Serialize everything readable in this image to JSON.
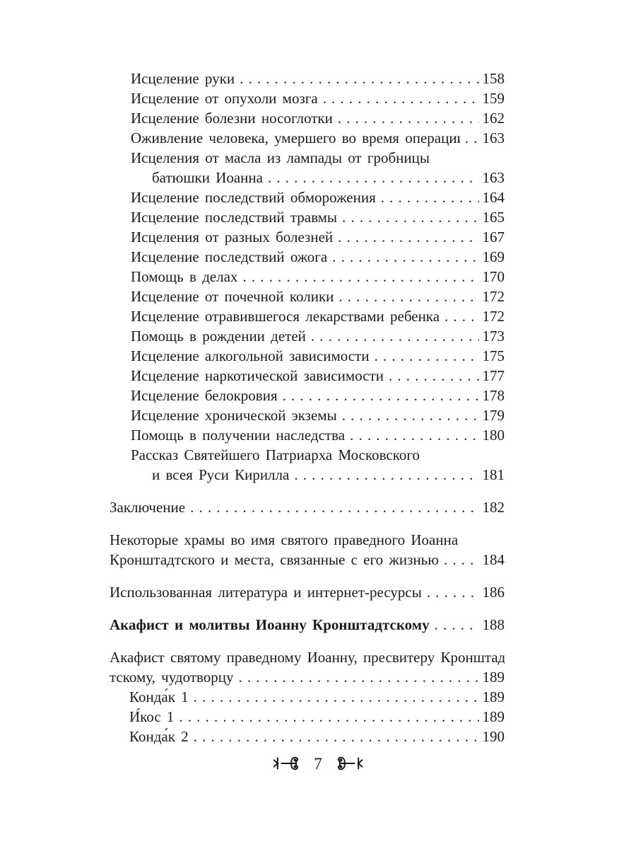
{
  "toc": {
    "entries": [
      {
        "lines": [
          "Исцеление руки"
        ],
        "page": "158",
        "indent": 1
      },
      {
        "lines": [
          "Исцеление от опухоли мозга"
        ],
        "page": "159",
        "indent": 1
      },
      {
        "lines": [
          "Исцеление болезни носоглотки"
        ],
        "page": "162",
        "indent": 1
      },
      {
        "lines": [
          "Оживление человека, умершего во время операции"
        ],
        "page": "163",
        "indent": 1
      },
      {
        "lines": [
          "Исцеления от масла из лампады от гробницы",
          "батюшки Иоанна"
        ],
        "page": "163",
        "indent": 1,
        "wrap_indent": true
      },
      {
        "lines": [
          "Исцеление последствий обморожения"
        ],
        "page": "164",
        "indent": 1
      },
      {
        "lines": [
          "Исцеление последствий травмы"
        ],
        "page": "165",
        "indent": 1
      },
      {
        "lines": [
          "Исцеления от разных болезней"
        ],
        "page": "167",
        "indent": 1
      },
      {
        "lines": [
          "Исцеление последствий ожога"
        ],
        "page": "169",
        "indent": 1
      },
      {
        "lines": [
          "Помощь в делах"
        ],
        "page": "170",
        "indent": 1
      },
      {
        "lines": [
          "Исцеление от почечной колики"
        ],
        "page": "172",
        "indent": 1
      },
      {
        "lines": [
          "Исцеление отравившегося лекарствами ребенка"
        ],
        "page": "172",
        "indent": 1
      },
      {
        "lines": [
          "Помощь в рождении детей"
        ],
        "page": "173",
        "indent": 1
      },
      {
        "lines": [
          "Исцеление алкогольной зависимости"
        ],
        "page": "175",
        "indent": 1
      },
      {
        "lines": [
          "Исцеление наркотической зависимости"
        ],
        "page": "177",
        "indent": 1
      },
      {
        "lines": [
          "Исцеление белокровия"
        ],
        "page": "178",
        "indent": 1
      },
      {
        "lines": [
          "Исцеление хронической экземы"
        ],
        "page": "179",
        "indent": 1
      },
      {
        "lines": [
          "Помощь в получении наследства"
        ],
        "page": "180",
        "indent": 1
      },
      {
        "lines": [
          "Рассказ Святейшего Патриарха Московского",
          "и всея Руси Кирилла"
        ],
        "page": "181",
        "indent": 1,
        "wrap_indent": true
      },
      {
        "lines": [
          "Заключение"
        ],
        "page": "182",
        "indent": 0,
        "gap_before": true
      },
      {
        "lines": [
          "Некоторые храмы во имя святого праведного Иоанна",
          "Кронштадтского и места, связанные с его жизнью"
        ],
        "page": "184",
        "indent": 0,
        "gap_before": true
      },
      {
        "lines": [
          "Использованная литература и интернет-ресурсы"
        ],
        "page": "186",
        "indent": 0,
        "gap_before": true
      },
      {
        "lines": [
          "Акафист и молитвы Иоанну Кронштадтскому"
        ],
        "page": "188",
        "indent": 0,
        "gap_before": true,
        "bold": true
      },
      {
        "lines": [
          "Акафист святому праведному Иоанну, пресвитеру Кронштад-",
          "тскому, чудотворцу"
        ],
        "page": "189",
        "indent": 0,
        "gap_before": true
      },
      {
        "lines": [
          "Конда́к 1"
        ],
        "page": "189",
        "indent": 2
      },
      {
        "lines": [
          "И́кос 1"
        ],
        "page": "189",
        "indent": 2
      },
      {
        "lines": [
          "Конда́к 2"
        ],
        "page": "190",
        "indent": 2
      }
    ]
  },
  "footer": {
    "page_number": "7",
    "ornament_left_icon": "fleuron-left",
    "ornament_right_icon": "fleuron-right",
    "ink_color": "#1c1c1c"
  }
}
